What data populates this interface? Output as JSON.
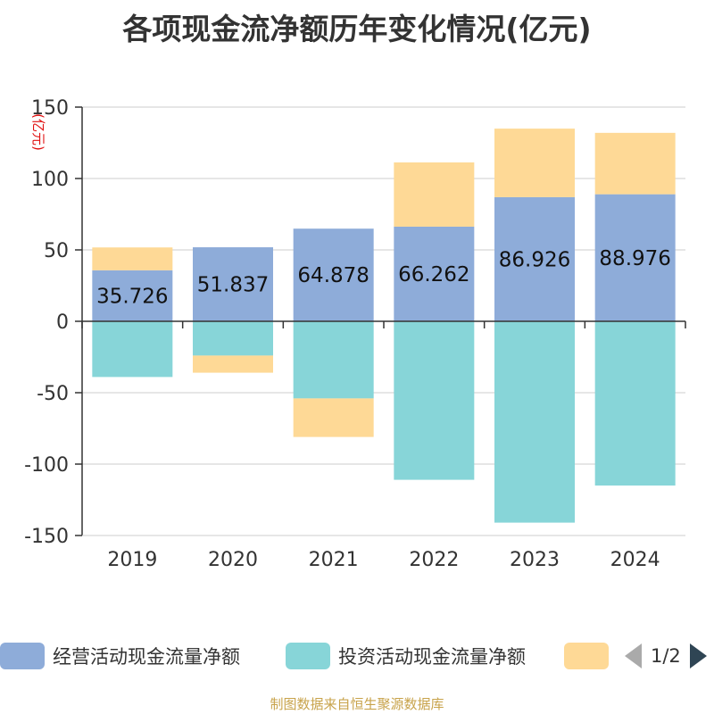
{
  "chart_data": {
    "type": "bar",
    "stacked": true,
    "title": "各项现金流净额历年变化情况(亿元)",
    "ylabel": "(亿元)",
    "xlabel": "",
    "categories": [
      "2019",
      "2020",
      "2021",
      "2022",
      "2023",
      "2024"
    ],
    "ylim": [
      -150,
      150
    ],
    "yticks": [
      150,
      100,
      50,
      0,
      -50,
      -100,
      -150
    ],
    "ytick_labels": [
      "150",
      "100",
      "50",
      "0",
      "-50",
      "-100",
      "-150"
    ],
    "series": [
      {
        "name": "经营活动现金流量净额",
        "color": "#8eacd9",
        "values": [
          35.726,
          51.837,
          64.878,
          66.262,
          86.926,
          88.976
        ],
        "data_labels": [
          "35.726",
          "51.837",
          "64.878",
          "66.262",
          "86.926",
          "88.976"
        ]
      },
      {
        "name": "投资活动现金流量净额",
        "color": "#87d5d8",
        "values": [
          -39,
          -24,
          -54,
          -111,
          -141,
          -115
        ]
      },
      {
        "name": "",
        "color": "#fed996",
        "values": [
          16,
          -12,
          -27,
          45,
          48,
          43
        ]
      }
    ],
    "legend": {
      "position": "bottom",
      "page": "1/2"
    }
  },
  "source_text": "制图数据来自恒生聚源数据库"
}
